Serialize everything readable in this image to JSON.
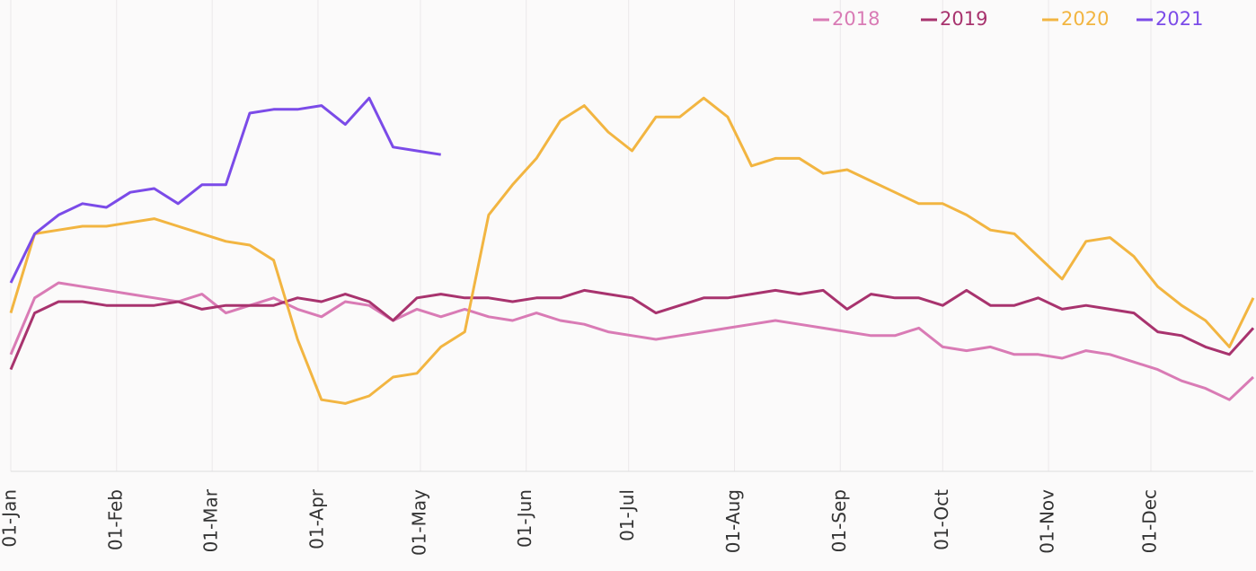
{
  "chart_data": {
    "type": "line",
    "x": [
      0,
      7,
      14,
      21,
      28,
      35,
      42,
      49,
      56,
      63,
      70,
      77,
      84,
      91,
      98,
      105,
      112,
      119,
      126,
      133,
      140,
      147,
      154,
      161,
      168,
      175,
      182,
      189,
      196,
      203,
      210,
      217,
      224,
      231,
      238,
      245,
      252,
      259,
      266,
      273,
      280,
      287,
      294,
      301,
      308,
      315,
      322,
      329,
      336,
      343,
      350,
      357,
      364
    ],
    "xlim": [
      0,
      364
    ],
    "xticks": [
      {
        "value": 0,
        "label": "01-Jan"
      },
      {
        "value": 31,
        "label": "01-Feb"
      },
      {
        "value": 59,
        "label": "01-Mar"
      },
      {
        "value": 90,
        "label": "01-Apr"
      },
      {
        "value": 120,
        "label": "01-May"
      },
      {
        "value": 151,
        "label": "01-Jun"
      },
      {
        "value": 181,
        "label": "01-Jul"
      },
      {
        "value": 212,
        "label": "01-Aug"
      },
      {
        "value": 243,
        "label": "01-Sep"
      },
      {
        "value": 273,
        "label": "01-Oct"
      },
      {
        "value": 304,
        "label": "01-Nov"
      },
      {
        "value": 334,
        "label": "01-Dec"
      }
    ],
    "ylim": [
      0,
      125
    ],
    "grid": "x",
    "legend": "top-right",
    "series": [
      {
        "name": "2018",
        "color": "#d97bb5",
        "values": [
          31,
          46,
          50,
          49,
          48,
          47,
          46,
          45,
          47,
          42,
          44,
          46,
          43,
          41,
          45,
          44,
          40,
          43,
          41,
          43,
          41,
          40,
          42,
          40,
          39,
          37,
          36,
          35,
          36,
          37,
          38,
          39,
          40,
          39,
          38,
          37,
          36,
          36,
          38,
          33,
          32,
          33,
          31,
          31,
          30,
          32,
          31,
          29,
          27,
          24,
          22,
          19,
          25
        ]
      },
      {
        "name": "2019",
        "color": "#a8336e",
        "values": [
          27,
          42,
          45,
          45,
          44,
          44,
          44,
          45,
          43,
          44,
          44,
          44,
          46,
          45,
          47,
          45,
          40,
          46,
          47,
          46,
          46,
          45,
          46,
          46,
          48,
          47,
          46,
          42,
          44,
          46,
          46,
          47,
          48,
          47,
          48,
          43,
          47,
          46,
          46,
          44,
          48,
          44,
          44,
          46,
          43,
          44,
          43,
          42,
          37,
          36,
          33,
          31,
          38
        ]
      },
      {
        "name": "2020",
        "color": "#f2b541",
        "values": [
          42,
          63,
          64,
          65,
          65,
          66,
          67,
          65,
          63,
          61,
          60,
          56,
          35,
          19,
          18,
          20,
          25,
          26,
          33,
          37,
          68,
          76,
          83,
          93,
          97,
          90,
          85,
          94,
          94,
          99,
          94,
          81,
          83,
          83,
          79,
          80,
          77,
          74,
          71,
          71,
          68,
          64,
          63,
          57,
          51,
          61,
          62,
          57,
          49,
          44,
          40,
          33,
          46
        ]
      },
      {
        "name": "2021",
        "color": "#7b4be8",
        "values": [
          50,
          63,
          68,
          71,
          70,
          74,
          75,
          71,
          76,
          76,
          95,
          96,
          96,
          97,
          92,
          99,
          86,
          85,
          84,
          null,
          null,
          null,
          null,
          null,
          null,
          null,
          null,
          null,
          null,
          null,
          null,
          null,
          null,
          null,
          null,
          null,
          null,
          null,
          null,
          null,
          null,
          null,
          null,
          null,
          null,
          null,
          null,
          null,
          null,
          null,
          null,
          null,
          null
        ]
      }
    ]
  }
}
